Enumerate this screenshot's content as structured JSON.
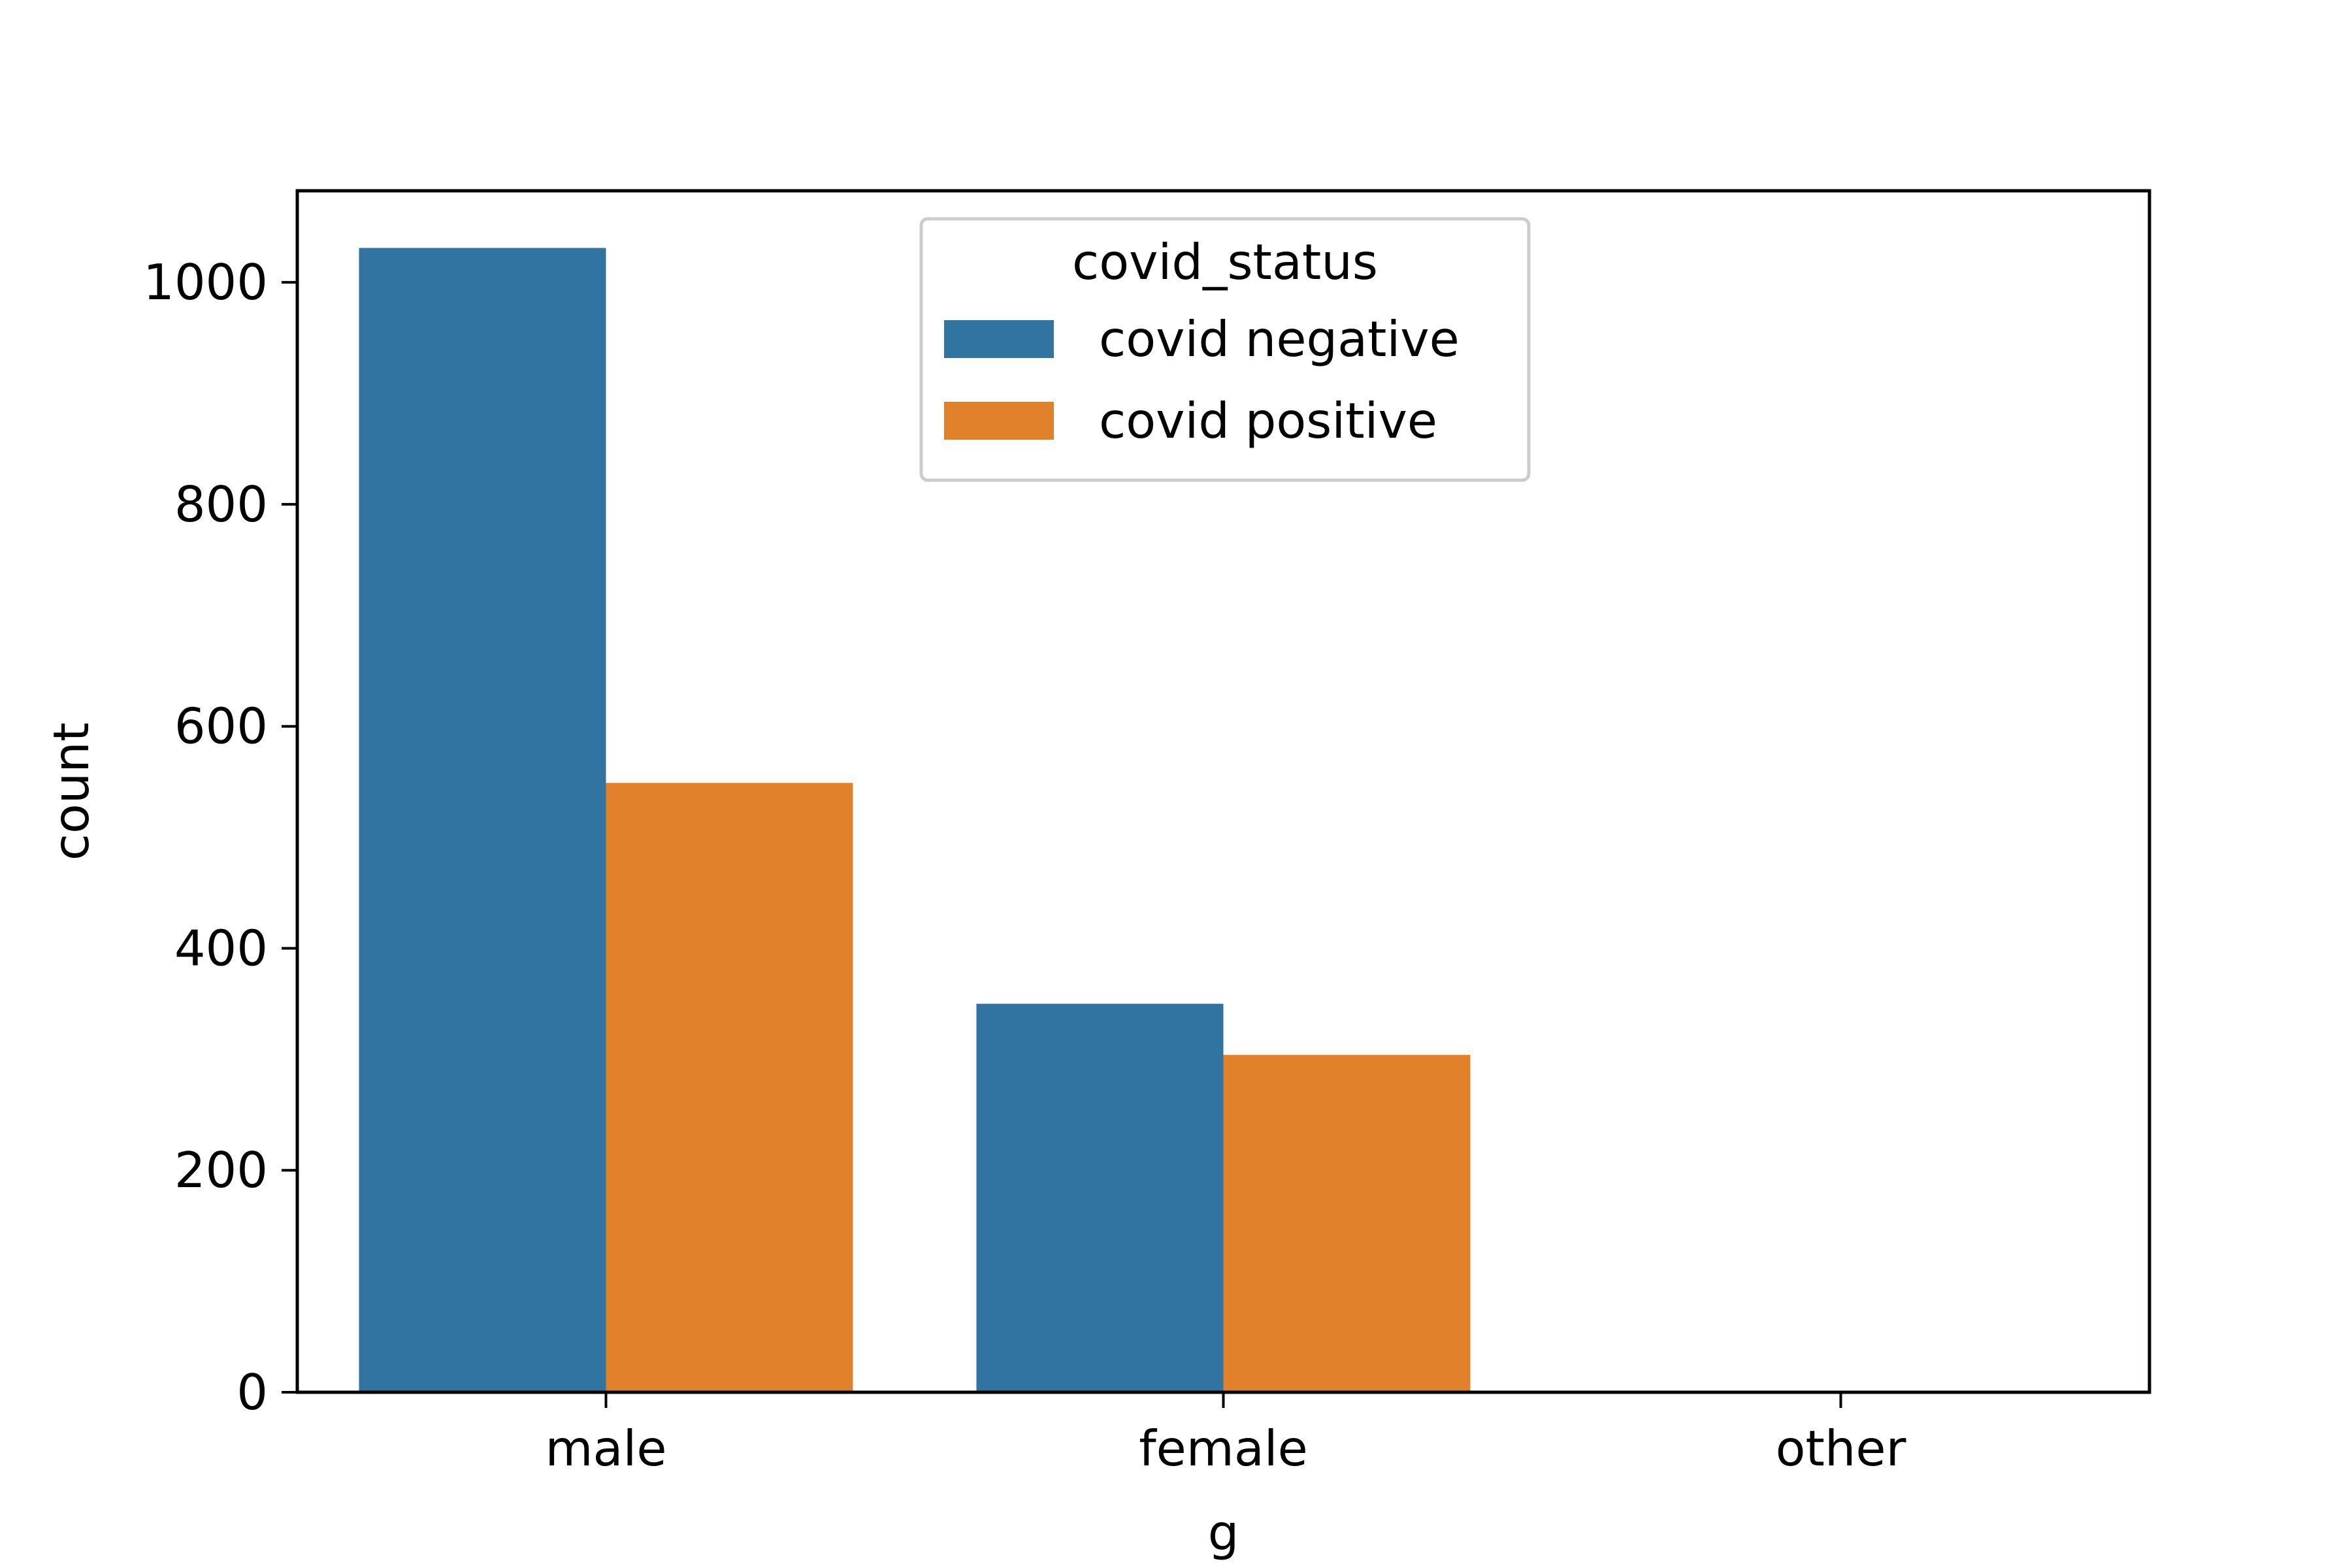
{
  "chart_data": {
    "type": "bar",
    "title": "",
    "xlabel": "g",
    "ylabel": "count",
    "categories": [
      "male",
      "female",
      "other"
    ],
    "series": [
      {
        "name": "covid negative",
        "values": [
          1031,
          350,
          0
        ],
        "color": "#3274a1"
      },
      {
        "name": "covid positive",
        "values": [
          549,
          304,
          0
        ],
        "color": "#e1812c"
      }
    ],
    "ylim": [
      0,
      1082.5
    ],
    "yticks": [
      0,
      200,
      400,
      600,
      800,
      1000
    ],
    "grid": false,
    "legend": {
      "title": "covid_status",
      "placement": "upper center"
    }
  }
}
